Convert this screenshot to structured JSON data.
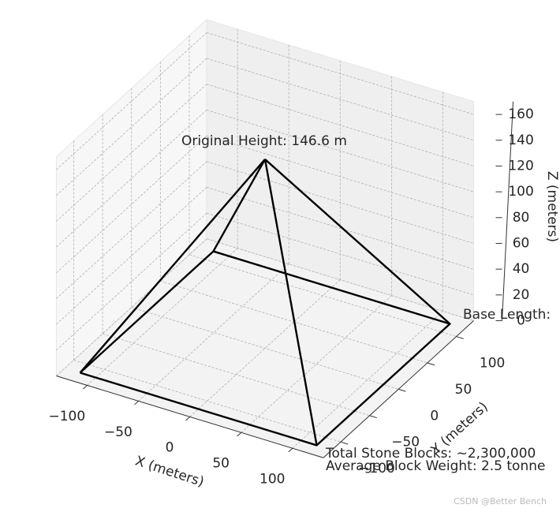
{
  "chart_data": {
    "type": "line3d",
    "xlabel": "X (meters)",
    "ylabel": "Y (meters)",
    "zlabel": "Z (meters)",
    "xlim": [
      -130,
      130
    ],
    "ylim": [
      -130,
      130
    ],
    "zlim": [
      0,
      170
    ],
    "xticks": [
      {
        "value": -100,
        "label": "−100"
      },
      {
        "value": -50,
        "label": "−50"
      },
      0,
      50,
      100
    ],
    "yticks": [
      {
        "value": -100,
        "label": "−100"
      },
      {
        "value": -50,
        "label": "−50"
      },
      0,
      50,
      100
    ],
    "zticks": [
      0,
      20,
      40,
      60,
      80,
      100,
      120,
      140,
      160
    ],
    "grid": true,
    "color": "#000000",
    "series": [
      {
        "x": [
          -115.2,
          115.2,
          115.2,
          -115.2,
          -115.2
        ],
        "y": [
          -115.2,
          -115.2,
          115.2,
          115.2,
          -115.2
        ],
        "z": [
          0,
          0,
          0,
          0,
          0
        ]
      },
      {
        "x": [
          -115.2,
          0
        ],
        "y": [
          -115.2,
          0
        ],
        "z": [
          0,
          146.6
        ]
      },
      {
        "x": [
          115.2,
          0
        ],
        "y": [
          -115.2,
          0
        ],
        "z": [
          0,
          146.6
        ]
      },
      {
        "x": [
          115.2,
          0
        ],
        "y": [
          115.2,
          0
        ],
        "z": [
          0,
          146.6
        ]
      },
      {
        "x": [
          -115.2,
          0
        ],
        "y": [
          115.2,
          0
        ],
        "z": [
          0,
          146.6
        ]
      }
    ],
    "annotations": [
      "Original Height: 146.6 m",
      "Base Length:",
      "Total Stone Blocks: ~2,300,000",
      "Average Block Weight: 2.5 tonne"
    ],
    "watermark": "CSDN @Better Bench"
  }
}
